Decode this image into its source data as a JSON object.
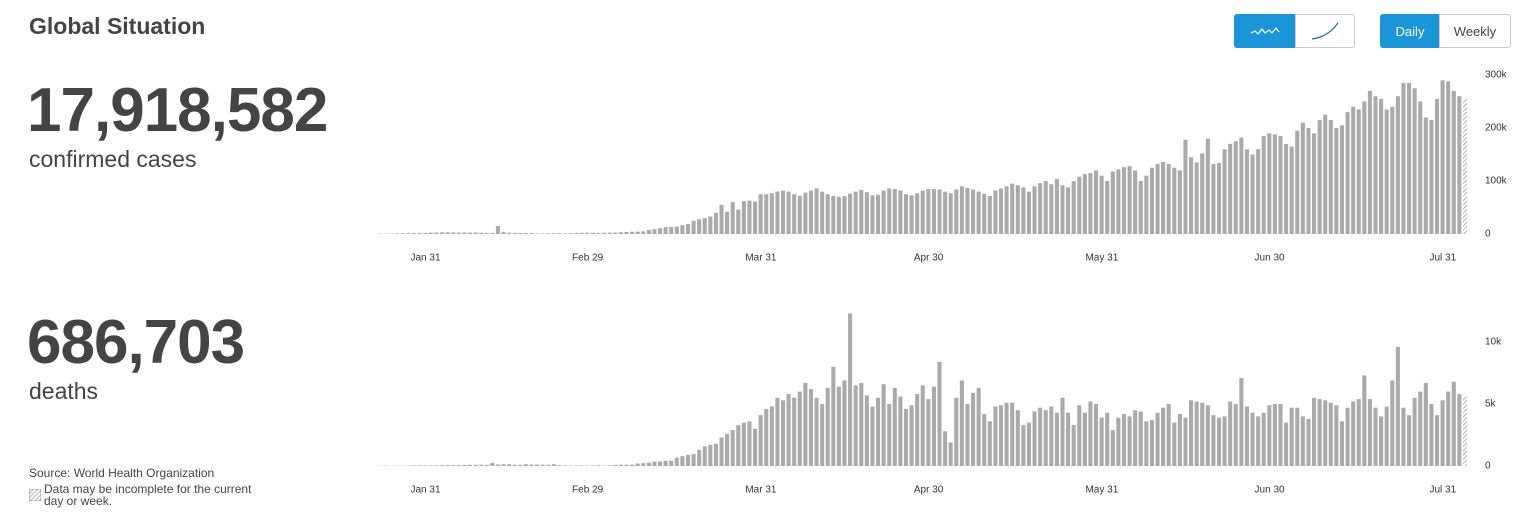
{
  "header": {
    "title": "Global Situation"
  },
  "controls": {
    "period": [
      "Daily",
      "Weekly"
    ]
  },
  "stats": [
    {
      "value": "17,918,582",
      "label": "confirmed cases"
    },
    {
      "value": "686,703",
      "label": "deaths"
    }
  ],
  "source": "Source: World Health Organization",
  "note": "Data may be incomplete for the current day or week.",
  "chart_data": [
    {
      "type": "bar",
      "color": "#aaaaaa",
      "categories": [
        null,
        null,
        null,
        null,
        null,
        null,
        null,
        null,
        "Jan 31",
        null,
        null,
        null,
        null,
        null,
        null,
        null,
        null,
        null,
        null,
        null,
        null,
        null,
        null,
        null,
        null,
        null,
        null,
        null,
        null,
        null,
        null,
        null,
        null,
        null,
        null,
        null,
        null,
        "Feb 29",
        null,
        null,
        null,
        null,
        null,
        null,
        null,
        null,
        null,
        null,
        null,
        null,
        null,
        null,
        null,
        null,
        null,
        null,
        null,
        null,
        null,
        null,
        null,
        null,
        null,
        null,
        null,
        null,
        null,
        null,
        "Mar 31",
        null,
        null,
        null,
        null,
        null,
        null,
        null,
        null,
        null,
        null,
        null,
        null,
        null,
        null,
        null,
        null,
        null,
        null,
        null,
        null,
        null,
        null,
        null,
        null,
        null,
        null,
        null,
        null,
        null,
        "Apr 30",
        null,
        null,
        null,
        null,
        null,
        null,
        null,
        null,
        null,
        null,
        null,
        null,
        null,
        null,
        null,
        null,
        null,
        null,
        null,
        null,
        null,
        null,
        null,
        null,
        null,
        null,
        null,
        null,
        null,
        null,
        "May 31",
        null,
        null,
        null,
        null,
        null,
        null,
        null,
        null,
        null,
        null,
        null,
        null,
        null,
        null,
        null,
        null,
        null,
        null,
        null,
        null,
        null,
        null,
        null,
        null,
        null,
        null,
        null,
        null,
        null,
        "Jun 30",
        null,
        null,
        null,
        null,
        null,
        null,
        null,
        null,
        null,
        null,
        null,
        null,
        null,
        null,
        null,
        null,
        null,
        null,
        null,
        null,
        null,
        null,
        null,
        null,
        null,
        null,
        null,
        null,
        null,
        null,
        "Jul 31",
        null,
        null,
        null,
        null
      ],
      "values": [
        600,
        700,
        800,
        1200,
        1400,
        1700,
        1800,
        2000,
        2100,
        2500,
        2800,
        3000,
        3200,
        3100,
        2800,
        3000,
        2600,
        2700,
        2400,
        2100,
        1900,
        15100,
        3500,
        2500,
        2100,
        1900,
        1800,
        1700,
        900,
        1000,
        1200,
        1400,
        1500,
        1300,
        1400,
        1800,
        2100,
        2300,
        2400,
        2100,
        2300,
        2500,
        2700,
        3500,
        3800,
        4200,
        4400,
        5000,
        7500,
        9000,
        11000,
        13000,
        13500,
        14000,
        16500,
        19000,
        25000,
        28000,
        30000,
        33000,
        40000,
        55000,
        42000,
        60000,
        46000,
        62000,
        63000,
        61000,
        75000,
        75000,
        77000,
        80000,
        82000,
        80000,
        75000,
        72000,
        78000,
        82000,
        86000,
        80000,
        75000,
        72000,
        70000,
        72000,
        76000,
        80000,
        83000,
        79000,
        73000,
        74000,
        82000,
        86000,
        85000,
        82000,
        75000,
        73000,
        77000,
        82000,
        85000,
        85000,
        84000,
        80000,
        77000,
        84000,
        90000,
        87000,
        84000,
        80000,
        76000,
        72000,
        82000,
        86000,
        90000,
        95000,
        92000,
        88000,
        80000,
        90000,
        96000,
        100000,
        94000,
        104000,
        92000,
        88000,
        100000,
        108000,
        113000,
        115000,
        120000,
        110000,
        100000,
        118000,
        122000,
        126000,
        128000,
        120000,
        100000,
        110000,
        125000,
        132000,
        136000,
        132000,
        125000,
        120000,
        178000,
        145000,
        135000,
        152000,
        180000,
        132000,
        134000,
        160000,
        170000,
        175000,
        182000,
        160000,
        150000,
        160000,
        185000,
        190000,
        188000,
        185000,
        170000,
        165000,
        195000,
        210000,
        200000,
        190000,
        215000,
        225000,
        215000,
        200000,
        205000,
        230000,
        240000,
        235000,
        250000,
        270000,
        260000,
        255000,
        235000,
        240000,
        260000,
        285000,
        285000,
        275000,
        250000,
        220000,
        215000,
        255000,
        290000,
        288000,
        270000,
        260000,
        255000
      ],
      "ylim": [
        0,
        300000
      ],
      "yticks": [
        0,
        {
          "value": 100000,
          "label": "100k"
        },
        {
          "value": 200000,
          "label": "200k"
        },
        {
          "value": 300000,
          "label": "300k"
        }
      ]
    },
    {
      "type": "bar",
      "color": "#aaaaaa",
      "categories": [
        null,
        null,
        null,
        null,
        null,
        null,
        null,
        null,
        "Jan 31",
        null,
        null,
        null,
        null,
        null,
        null,
        null,
        null,
        null,
        null,
        null,
        null,
        null,
        null,
        null,
        null,
        null,
        null,
        null,
        null,
        null,
        null,
        null,
        null,
        null,
        null,
        null,
        null,
        "Feb 29",
        null,
        null,
        null,
        null,
        null,
        null,
        null,
        null,
        null,
        null,
        null,
        null,
        null,
        null,
        null,
        null,
        null,
        null,
        null,
        null,
        null,
        null,
        null,
        null,
        null,
        null,
        null,
        null,
        null,
        null,
        "Mar 31",
        null,
        null,
        null,
        null,
        null,
        null,
        null,
        null,
        null,
        null,
        null,
        null,
        null,
        null,
        null,
        null,
        null,
        null,
        null,
        null,
        null,
        null,
        null,
        null,
        null,
        null,
        null,
        null,
        null,
        "Apr 30",
        null,
        null,
        null,
        null,
        null,
        null,
        null,
        null,
        null,
        null,
        null,
        null,
        null,
        null,
        null,
        null,
        null,
        null,
        null,
        null,
        null,
        null,
        null,
        null,
        null,
        null,
        null,
        null,
        null,
        null,
        "May 31",
        null,
        null,
        null,
        null,
        null,
        null,
        null,
        null,
        null,
        null,
        null,
        null,
        null,
        null,
        null,
        null,
        null,
        null,
        null,
        null,
        null,
        null,
        null,
        null,
        null,
        null,
        null,
        null,
        null,
        "Jun 30",
        null,
        null,
        null,
        null,
        null,
        null,
        null,
        null,
        null,
        null,
        null,
        null,
        null,
        null,
        null,
        null,
        null,
        null,
        null,
        null,
        null,
        null,
        null,
        null,
        null,
        null,
        null,
        null,
        null,
        null,
        "Jul 31",
        null,
        null,
        null,
        null
      ],
      "values": [
        20,
        25,
        15,
        25,
        25,
        26,
        38,
        43,
        46,
        45,
        57,
        64,
        66,
        73,
        73,
        86,
        89,
        97,
        108,
        97,
        254,
        121,
        143,
        142,
        105,
        98,
        139,
        112,
        118,
        109,
        97,
        150,
        71,
        52,
        29,
        44,
        47,
        35,
        42,
        64,
        37,
        54,
        80,
        100,
        100,
        106,
        200,
        230,
        270,
        340,
        360,
        410,
        420,
        670,
        800,
        900,
        960,
        1300,
        1580,
        1700,
        1800,
        2300,
        2600,
        2900,
        3300,
        3500,
        3600,
        3000,
        4100,
        4600,
        4800,
        5500,
        5300,
        5800,
        5500,
        6000,
        6700,
        6200,
        5500,
        5000,
        6300,
        8000,
        6400,
        6900,
        12300,
        6500,
        6700,
        5700,
        4800,
        5500,
        6600,
        5000,
        6300,
        5600,
        4600,
        4900,
        5800,
        6500,
        5400,
        6400,
        8400,
        2800,
        1900,
        5500,
        6900,
        5000,
        5900,
        6300,
        4200,
        3600,
        4800,
        4900,
        5100,
        5100,
        4500,
        3300,
        3500,
        4400,
        4700,
        4500,
        4800,
        4300,
        5500,
        4300,
        3300,
        4900,
        4300,
        5200,
        5000,
        3900,
        4300,
        2900,
        3900,
        4200,
        4000,
        4500,
        4400,
        3600,
        3700,
        4300,
        4700,
        5000,
        3500,
        4200,
        3900,
        5300,
        5200,
        5100,
        4900,
        4100,
        3900,
        4000,
        5200,
        5000,
        7100,
        4800,
        4300,
        4000,
        4300,
        4900,
        5000,
        5000,
        3500,
        4700,
        4700,
        4000,
        3800,
        5500,
        5400,
        5300,
        5100,
        4900,
        3600,
        4700,
        5200,
        5400,
        7300,
        5400,
        4700,
        4000,
        4800,
        6900,
        9600,
        4700,
        4100,
        5500,
        6000,
        6700,
        5000,
        4100,
        5300,
        6000,
        6800,
        5800,
        5600
      ],
      "ylim": [
        0,
        12500
      ],
      "yticks": [
        0,
        {
          "value": 5000,
          "label": "5k"
        },
        {
          "value": 10000,
          "label": "10k"
        }
      ]
    }
  ]
}
